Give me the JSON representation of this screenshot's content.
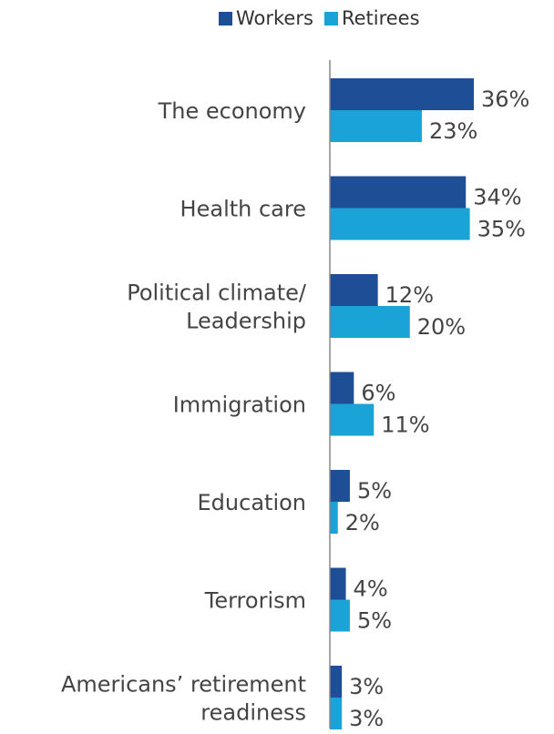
{
  "chart_data": {
    "type": "bar",
    "orientation": "horizontal",
    "categories": [
      [
        "The economy"
      ],
      [
        "Health care"
      ],
      [
        "Political climate/",
        "Leadership"
      ],
      [
        "Immigration"
      ],
      [
        "Education"
      ],
      [
        "Terrorism"
      ],
      [
        "Americans’ retirement",
        "readiness"
      ]
    ],
    "series": [
      {
        "name": "Workers",
        "color": "#1e4e96",
        "values": [
          36,
          34,
          12,
          6,
          5,
          4,
          3
        ],
        "labels": [
          "36%",
          "34%",
          "12%",
          "6%",
          "5%",
          "4%",
          "3%"
        ]
      },
      {
        "name": "Retirees",
        "color": "#1aa3d6",
        "values": [
          23,
          35,
          20,
          11,
          2,
          5,
          3
        ],
        "labels": [
          "23%",
          "35%",
          "20%",
          "11%",
          "2%",
          "5%",
          "3%"
        ]
      }
    ],
    "xlim": [
      0,
      36
    ],
    "legend_position": "top",
    "grid": false
  }
}
